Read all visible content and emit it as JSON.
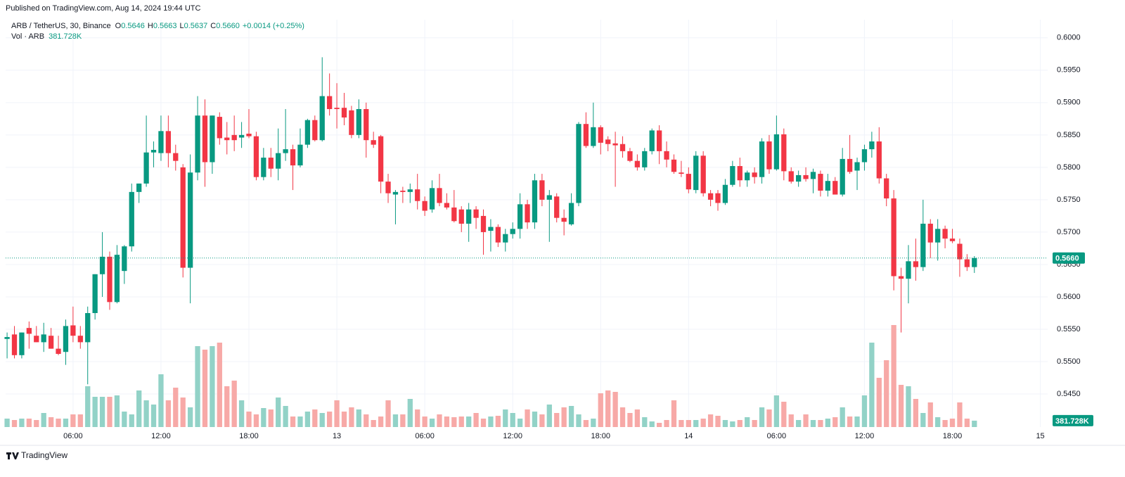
{
  "chart_data": {
    "type": "candlestick",
    "published": "Published on TradingView.com, Aug 14, 2024 19:44 UTC",
    "symbol": "ARB / TetherUS, 30, Binance",
    "ohlc_legend": [
      {
        "key": "O",
        "value": "0.5646"
      },
      {
        "key": "H",
        "value": "0.5663"
      },
      {
        "key": "L",
        "value": "0.5637"
      },
      {
        "key": "C",
        "value": "0.5660"
      }
    ],
    "change": "+0.0014 (+0.25%)",
    "volume_legend": {
      "label": "Vol · ARB",
      "value": "381.728K"
    },
    "brand": "TradingView",
    "up_color": "#089981",
    "down_color": "#f23645",
    "volume_up_color": "#92d2c7",
    "volume_down_color": "#f7a9a7",
    "grid": true,
    "ylim": [
      0.5399,
      0.6028
    ],
    "yticks": [
      {
        "value": 0.6,
        "label": "0.6000"
      },
      {
        "value": 0.595,
        "label": "0.5950"
      },
      {
        "value": 0.59,
        "label": "0.5900"
      },
      {
        "value": 0.585,
        "label": "0.5850"
      },
      {
        "value": 0.58,
        "label": "0.5800"
      },
      {
        "value": 0.575,
        "label": "0.5750"
      },
      {
        "value": 0.57,
        "label": "0.5700"
      },
      {
        "value": 0.565,
        "label": "0.5650"
      },
      {
        "value": 0.56,
        "label": "0.5600"
      },
      {
        "value": 0.555,
        "label": "0.5550"
      },
      {
        "value": 0.55,
        "label": "0.5500"
      },
      {
        "value": 0.545,
        "label": "0.5450"
      }
    ],
    "xlim": [
      -0.2,
      142
    ],
    "xticks": [
      {
        "value": 9,
        "label": "06:00"
      },
      {
        "value": 21,
        "label": "12:00"
      },
      {
        "value": 33,
        "label": "18:00"
      },
      {
        "value": 45,
        "label": "13"
      },
      {
        "value": 57,
        "label": "06:00"
      },
      {
        "value": 69,
        "label": "12:00"
      },
      {
        "value": 81,
        "label": "18:00"
      },
      {
        "value": 93,
        "label": "14"
      },
      {
        "value": 105,
        "label": "06:00"
      },
      {
        "value": 117,
        "label": "12:00"
      },
      {
        "value": 129,
        "label": "18:00"
      },
      {
        "value": 141,
        "label": "15"
      }
    ],
    "open": [
      0.5535,
      0.5542,
      0.551,
      0.5552,
      0.554,
      0.553,
      0.554,
      0.552,
      0.5515,
      0.5556,
      0.554,
      0.553,
      0.5575,
      0.5635,
      0.5662,
      0.5592,
      0.564,
      0.5678,
      0.5762,
      0.5775,
      0.5823,
      0.5822,
      0.5856,
      0.5822,
      0.58,
      0.5645,
      0.5792,
      0.588,
      0.5808,
      0.5878,
      0.5846,
      0.585,
      0.5846,
      0.5852,
      0.5848,
      0.5785,
      0.5815,
      0.5798,
      0.5822,
      0.5828,
      0.5803,
      0.5835,
      0.5873,
      0.5842,
      0.591,
      0.5892,
      0.5892,
      0.5888,
      0.585,
      0.589,
      0.5842,
      0.5848,
      0.5778,
      0.5758,
      0.5764,
      0.5762,
      0.5766,
      0.5748,
      0.5735,
      0.5768,
      0.5745,
      0.5738,
      0.5735,
      0.5713,
      0.5735,
      0.5725,
      0.5702,
      0.5708,
      0.5684,
      0.5697,
      0.5705,
      0.5743,
      0.5715,
      0.578,
      0.575,
      0.5755,
      0.5722,
      0.5712,
      0.5745,
      0.5867,
      0.5833,
      0.5862,
      0.5843,
      0.5837,
      0.5836,
      0.5825,
      0.581,
      0.58,
      0.5825,
      0.5857,
      0.5825,
      0.5812,
      0.5792,
      0.579,
      0.5765,
      0.5818,
      0.576,
      0.576,
      0.5745,
      0.5773,
      0.5802,
      0.578,
      0.5792,
      0.5785,
      0.584,
      0.5797,
      0.5851,
      0.5794,
      0.5778,
      0.5788,
      0.5782,
      0.579,
      0.5764,
      0.5779,
      0.5758,
      0.5813,
      0.5795,
      0.5808,
      0.5828,
      0.584,
      0.5783,
      0.5752,
      0.5632,
      0.5628,
      0.5655,
      0.5646,
      0.5713,
      0.5684,
      0.5705,
      0.569,
      0.5682,
      0.5658,
      0.5646
    ],
    "high": [
      0.5545,
      0.5555,
      0.5545,
      0.5562,
      0.5555,
      0.556,
      0.5552,
      0.554,
      0.5565,
      0.5585,
      0.5555,
      0.5585,
      0.5635,
      0.57,
      0.567,
      0.568,
      0.568,
      0.5775,
      0.5775,
      0.588,
      0.584,
      0.588,
      0.588,
      0.5835,
      0.5805,
      0.582,
      0.591,
      0.5905,
      0.588,
      0.5885,
      0.587,
      0.588,
      0.587,
      0.589,
      0.5855,
      0.583,
      0.583,
      0.586,
      0.589,
      0.5835,
      0.586,
      0.5875,
      0.588,
      0.597,
      0.5945,
      0.593,
      0.5915,
      0.5895,
      0.5905,
      0.59,
      0.5855,
      0.585,
      0.579,
      0.5765,
      0.577,
      0.5775,
      0.579,
      0.5755,
      0.578,
      0.579,
      0.576,
      0.5765,
      0.574,
      0.5745,
      0.574,
      0.5735,
      0.572,
      0.5712,
      0.5705,
      0.5715,
      0.576,
      0.575,
      0.579,
      0.579,
      0.5765,
      0.576,
      0.5735,
      0.576,
      0.587,
      0.5885,
      0.59,
      0.5865,
      0.5848,
      0.5855,
      0.5848,
      0.583,
      0.582,
      0.583,
      0.586,
      0.5865,
      0.584,
      0.582,
      0.581,
      0.58,
      0.5825,
      0.5825,
      0.5765,
      0.5765,
      0.5782,
      0.581,
      0.5815,
      0.5795,
      0.58,
      0.5845,
      0.585,
      0.588,
      0.586,
      0.58,
      0.5795,
      0.58,
      0.5798,
      0.5795,
      0.579,
      0.5785,
      0.583,
      0.585,
      0.5815,
      0.5835,
      0.5855,
      0.5862,
      0.579,
      0.5765,
      0.5645,
      0.568,
      0.569,
      0.575,
      0.572,
      0.572,
      0.571,
      0.5705,
      0.569,
      0.5666,
      0.5663
    ],
    "low": [
      0.5505,
      0.5505,
      0.5505,
      0.552,
      0.553,
      0.5515,
      0.552,
      0.551,
      0.5495,
      0.553,
      0.552,
      0.5465,
      0.5565,
      0.56,
      0.558,
      0.559,
      0.562,
      0.567,
      0.5745,
      0.577,
      0.58,
      0.581,
      0.58,
      0.5795,
      0.563,
      0.559,
      0.578,
      0.577,
      0.579,
      0.5835,
      0.582,
      0.5825,
      0.583,
      0.5845,
      0.578,
      0.578,
      0.5785,
      0.578,
      0.581,
      0.5765,
      0.58,
      0.583,
      0.584,
      0.584,
      0.588,
      0.586,
      0.5865,
      0.5845,
      0.5845,
      0.5815,
      0.583,
      0.576,
      0.5745,
      0.5712,
      0.5745,
      0.5745,
      0.5735,
      0.5725,
      0.573,
      0.574,
      0.5735,
      0.5715,
      0.57,
      0.5685,
      0.5705,
      0.5665,
      0.567,
      0.5677,
      0.567,
      0.569,
      0.569,
      0.5705,
      0.5705,
      0.574,
      0.5685,
      0.5715,
      0.5695,
      0.571,
      0.574,
      0.583,
      0.583,
      0.582,
      0.5825,
      0.577,
      0.5815,
      0.5808,
      0.5795,
      0.5795,
      0.582,
      0.5805,
      0.58,
      0.579,
      0.5785,
      0.576,
      0.576,
      0.5755,
      0.574,
      0.5733,
      0.5742,
      0.577,
      0.577,
      0.577,
      0.5775,
      0.5775,
      0.579,
      0.5795,
      0.578,
      0.5775,
      0.577,
      0.5778,
      0.576,
      0.5755,
      0.5755,
      0.5758,
      0.5755,
      0.579,
      0.5765,
      0.5795,
      0.5815,
      0.5775,
      0.574,
      0.561,
      0.5545,
      0.559,
      0.5625,
      0.564,
      0.566,
      0.5656,
      0.5675,
      0.5683,
      0.5631,
      0.564,
      0.5637
    ],
    "close": [
      0.5538,
      0.551,
      0.5545,
      0.5543,
      0.553,
      0.5542,
      0.552,
      0.5512,
      0.5555,
      0.554,
      0.553,
      0.5575,
      0.5635,
      0.5662,
      0.5592,
      0.5665,
      0.5678,
      0.5762,
      0.5775,
      0.5823,
      0.5827,
      0.5856,
      0.5822,
      0.581,
      0.5645,
      0.5792,
      0.588,
      0.5808,
      0.588,
      0.5845,
      0.5842,
      0.5842,
      0.585,
      0.5848,
      0.5785,
      0.5815,
      0.5798,
      0.5822,
      0.5828,
      0.5803,
      0.5835,
      0.5873,
      0.5842,
      0.591,
      0.589,
      0.589,
      0.5877,
      0.585,
      0.589,
      0.5842,
      0.5835,
      0.5778,
      0.576,
      0.5762,
      0.5762,
      0.5766,
      0.5748,
      0.5733,
      0.5768,
      0.5745,
      0.5738,
      0.5717,
      0.5713,
      0.5735,
      0.5722,
      0.57,
      0.5708,
      0.5684,
      0.5697,
      0.5705,
      0.5743,
      0.5715,
      0.578,
      0.575,
      0.5757,
      0.5722,
      0.5716,
      0.5745,
      0.5867,
      0.5833,
      0.5862,
      0.5838,
      0.5836,
      0.5834,
      0.5825,
      0.581,
      0.58,
      0.5825,
      0.5857,
      0.5825,
      0.5812,
      0.5793,
      0.579,
      0.5766,
      0.5818,
      0.576,
      0.575,
      0.5745,
      0.5773,
      0.5802,
      0.578,
      0.5792,
      0.5785,
      0.584,
      0.5797,
      0.5851,
      0.5794,
      0.5778,
      0.5788,
      0.5782,
      0.5793,
      0.5764,
      0.5779,
      0.5758,
      0.5813,
      0.5793,
      0.5808,
      0.5828,
      0.584,
      0.5783,
      0.5752,
      0.5632,
      0.5628,
      0.5655,
      0.5646,
      0.5713,
      0.5684,
      0.5705,
      0.569,
      0.5686,
      0.5658,
      0.5646,
      0.566
    ],
    "volume": [
      504000,
      420000,
      504000,
      504000,
      420000,
      840000,
      588000,
      504000,
      504000,
      756000,
      756000,
      2436000,
      1806000,
      1806000,
      1806000,
      1890000,
      924000,
      756000,
      2184000,
      1596000,
      1344000,
      3150000,
      1596000,
      2352000,
      1764000,
      1176000,
      4830000,
      4620000,
      4830000,
      5040000,
      2436000,
      2772000,
      1596000,
      924000,
      756000,
      1134000,
      1050000,
      1764000,
      1260000,
      630000,
      630000,
      924000,
      1050000,
      840000,
      924000,
      1596000,
      924000,
      1176000,
      1050000,
      756000,
      420000,
      630000,
      1596000,
      756000,
      756000,
      1680000,
      1050000,
      630000,
      504000,
      756000,
      630000,
      588000,
      630000,
      630000,
      840000,
      504000,
      630000,
      672000,
      1050000,
      840000,
      504000,
      1050000,
      924000,
      756000,
      1344000,
      840000,
      1176000,
      1260000,
      756000,
      420000,
      504000,
      2016000,
      2184000,
      2100000,
      1176000,
      840000,
      1050000,
      588000,
      336000,
      252000,
      420000,
      1596000,
      420000,
      420000,
      420000,
      504000,
      756000,
      672000,
      420000,
      336000,
      420000,
      588000,
      420000,
      1176000,
      1050000,
      1890000,
      1512000,
      756000,
      420000,
      756000,
      420000,
      420000,
      504000,
      588000,
      1176000,
      630000,
      630000,
      1890000,
      5040000,
      2940000,
      3990000,
      6090000,
      2520000,
      2436000,
      1680000,
      840000,
      1470000,
      588000,
      420000,
      504000,
      1470000,
      504000,
      381728
    ]
  }
}
